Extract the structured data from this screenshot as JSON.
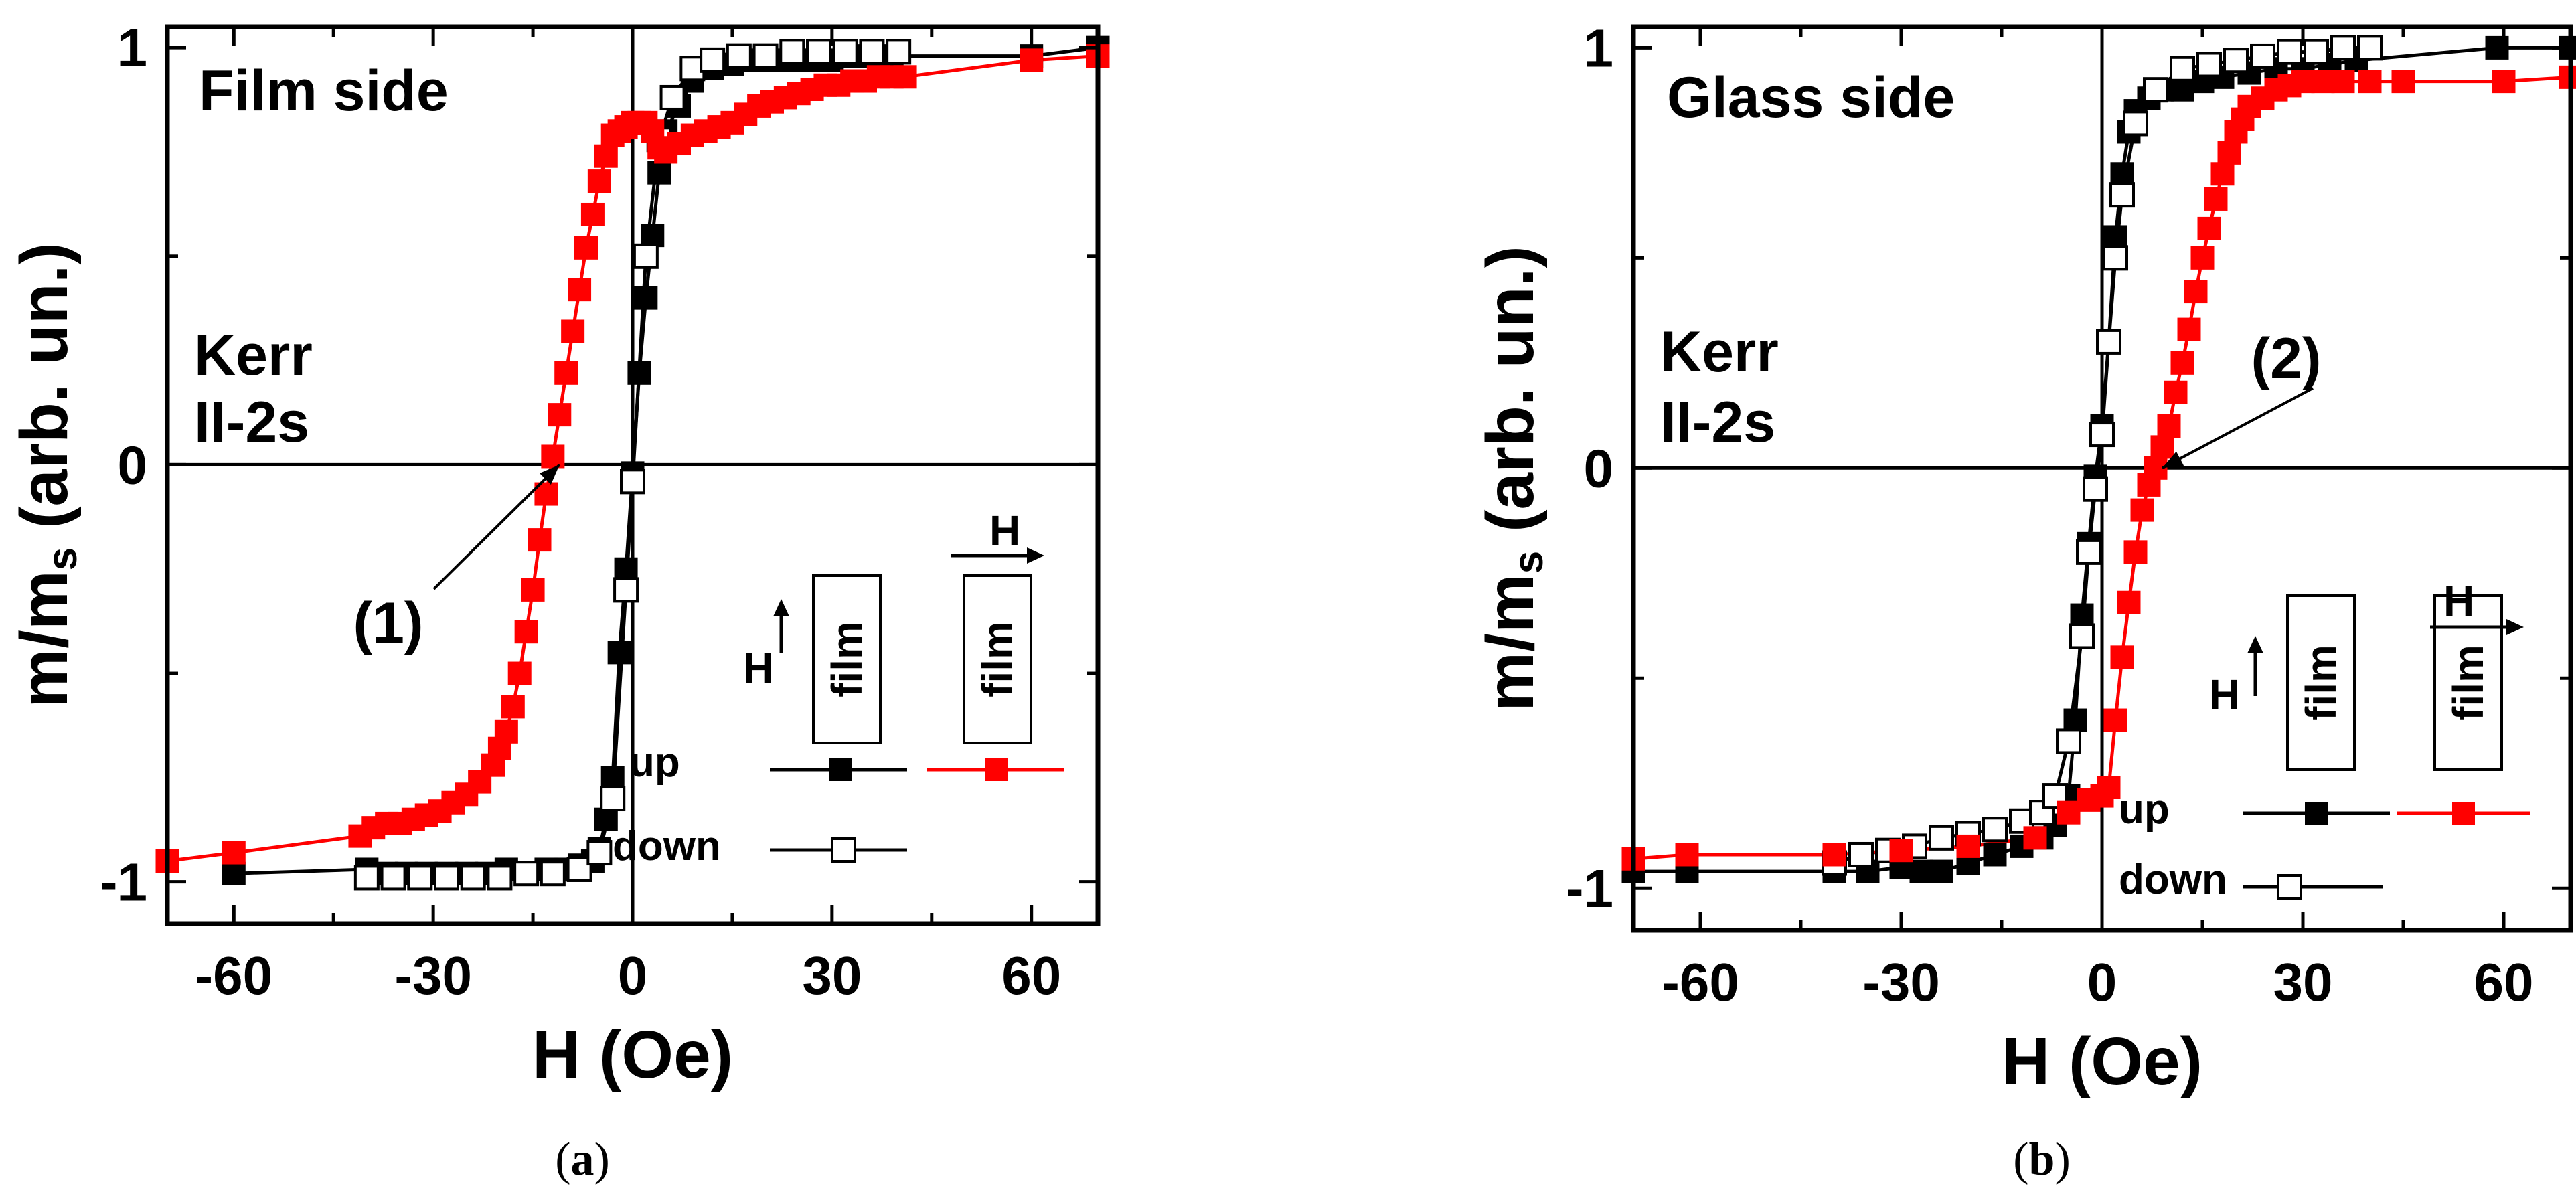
{
  "chart_data": [
    {
      "type": "scatter",
      "panel_label": {
        "open": "(",
        "letter": "a",
        "close": ")"
      },
      "title": "Film side",
      "annotation_kerr": "Kerr",
      "annotation_mode": "II-2s",
      "arrow_label": "(1)",
      "xlabel": "H (Oe)",
      "ylabel": "m/m",
      "ylabel_sub": "s",
      "ylabel_tail": " (arb. un.)",
      "xlim": [
        -70,
        70
      ],
      "ylim": [
        -1.1,
        1.05
      ],
      "xticks": [
        -60,
        -30,
        0,
        30,
        60
      ],
      "xtick_labels": [
        "-60",
        "-30",
        "0",
        "30",
        "60"
      ],
      "yticks": [
        -1,
        0,
        1
      ],
      "ytick_labels": [
        "-1",
        "0",
        "1"
      ],
      "inset_labels": {
        "h_perp": "H",
        "film_perp": "film",
        "h_par": "H",
        "film_par": "film"
      },
      "legend": {
        "up": "up",
        "down": "down"
      },
      "arrow_target": [
        -11,
        0
      ],
      "series": [
        {
          "name": "up (perpendicular)",
          "color": "#000000",
          "marker": "filled-square",
          "x": [
            -60,
            -40,
            -37,
            -34,
            -31,
            -28,
            -25,
            -22,
            -19,
            -16,
            -13,
            -10,
            -8,
            -6,
            -5,
            -4,
            -3,
            -2,
            -1,
            0,
            1,
            2,
            3,
            4,
            5,
            7,
            9,
            12,
            15,
            18,
            21,
            24,
            27,
            30,
            33,
            36,
            39,
            60,
            70
          ],
          "y": [
            -0.98,
            -0.97,
            -0.98,
            -0.98,
            -0.98,
            -0.98,
            -0.98,
            -0.98,
            -0.97,
            -0.98,
            -0.97,
            -0.97,
            -0.96,
            -0.95,
            -0.92,
            -0.85,
            -0.75,
            -0.45,
            -0.25,
            -0.02,
            0.22,
            0.4,
            0.55,
            0.7,
            0.8,
            0.86,
            0.92,
            0.95,
            0.96,
            0.97,
            0.97,
            0.97,
            0.97,
            0.97,
            0.98,
            0.98,
            0.98,
            0.98,
            1.0
          ]
        },
        {
          "name": "down (perpendicular)",
          "color": "#000000",
          "marker": "open-square",
          "x": [
            -40,
            -36,
            -32,
            -28,
            -24,
            -20,
            -16,
            -12,
            -8,
            -5,
            -3,
            -1,
            0,
            2,
            4,
            6,
            9,
            12,
            16,
            20,
            24,
            28,
            32,
            36,
            40
          ],
          "y": [
            -0.99,
            -0.99,
            -0.99,
            -0.99,
            -0.99,
            -0.99,
            -0.98,
            -0.98,
            -0.97,
            -0.93,
            -0.8,
            -0.3,
            -0.04,
            0.5,
            0.78,
            0.88,
            0.95,
            0.97,
            0.98,
            0.98,
            0.99,
            0.99,
            0.99,
            0.99,
            0.99
          ]
        },
        {
          "name": "up (parallel)",
          "color": "#ff0000",
          "marker": "filled-square",
          "x": [
            -70,
            -60,
            -41,
            -39,
            -37,
            -35,
            -33,
            -31,
            -29,
            -27,
            -25,
            -23,
            -21,
            -20,
            -19,
            -18,
            -17,
            -16,
            -15,
            -14,
            -13,
            -12,
            -11,
            -10,
            -9,
            -8,
            -7,
            -6,
            -5,
            -4,
            -3,
            -2,
            -1,
            0,
            1,
            2,
            3,
            4,
            5,
            7,
            9,
            11,
            13,
            15,
            17,
            19,
            21,
            23,
            25,
            27,
            29,
            31,
            33,
            35,
            37,
            39,
            41,
            60,
            70
          ],
          "y": [
            -0.95,
            -0.93,
            -0.89,
            -0.87,
            -0.86,
            -0.86,
            -0.85,
            -0.84,
            -0.83,
            -0.81,
            -0.79,
            -0.76,
            -0.72,
            -0.68,
            -0.64,
            -0.58,
            -0.5,
            -0.4,
            -0.3,
            -0.18,
            -0.07,
            0.02,
            0.12,
            0.22,
            0.32,
            0.42,
            0.52,
            0.6,
            0.68,
            0.74,
            0.79,
            0.8,
            0.81,
            0.82,
            0.82,
            0.82,
            0.8,
            0.76,
            0.75,
            0.77,
            0.79,
            0.8,
            0.81,
            0.82,
            0.84,
            0.86,
            0.87,
            0.88,
            0.89,
            0.9,
            0.91,
            0.91,
            0.92,
            0.92,
            0.93,
            0.93,
            0.93,
            0.97,
            0.98
          ]
        }
      ]
    },
    {
      "type": "scatter",
      "panel_label": {
        "open": "(",
        "letter": "b",
        "close": ")"
      },
      "title": "Glass side",
      "annotation_kerr": "Kerr",
      "annotation_mode": "II-2s",
      "arrow_label": "(2)",
      "xlabel": "H (Oe)",
      "ylabel": "m/m",
      "ylabel_sub": "s",
      "ylabel_tail": " (arb. un.)",
      "xlim": [
        -70,
        70
      ],
      "ylim": [
        -1.1,
        1.05
      ],
      "xticks": [
        -60,
        -30,
        0,
        30,
        60
      ],
      "xtick_labels": [
        "-60",
        "-30",
        "0",
        "30",
        "60"
      ],
      "yticks": [
        -1,
        0,
        1
      ],
      "ytick_labels": [
        "-1",
        "0",
        "1"
      ],
      "inset_labels": {
        "h_perp": "H",
        "film_perp": "film",
        "h_par": "H",
        "film_par": "film"
      },
      "legend": {
        "up": "up",
        "down": "down"
      },
      "arrow_target": [
        9,
        0
      ],
      "series": [
        {
          "name": "up (perpendicular)",
          "color": "#000000",
          "marker": "filled-square",
          "x": [
            -70,
            -62,
            -40,
            -35,
            -30,
            -27,
            -24,
            -20,
            -16,
            -12,
            -9,
            -7,
            -5,
            -4,
            -3,
            -2,
            -1,
            0,
            1,
            2,
            3,
            4,
            5,
            7,
            9,
            12,
            15,
            18,
            22,
            26,
            30,
            34,
            38,
            59,
            70
          ],
          "y": [
            -0.96,
            -0.96,
            -0.96,
            -0.96,
            -0.95,
            -0.96,
            -0.96,
            -0.94,
            -0.92,
            -0.9,
            -0.88,
            -0.85,
            -0.78,
            -0.6,
            -0.35,
            -0.18,
            -0.02,
            0.1,
            0.3,
            0.55,
            0.7,
            0.8,
            0.85,
            0.88,
            0.9,
            0.9,
            0.92,
            0.93,
            0.94,
            0.95,
            0.95,
            0.96,
            0.97,
            1.0,
            1.0
          ]
        },
        {
          "name": "down (perpendicular)",
          "color": "#000000",
          "marker": "open-square",
          "x": [
            -40,
            -36,
            -32,
            -28,
            -24,
            -20,
            -16,
            -12,
            -9,
            -7,
            -5,
            -3,
            -2,
            -1,
            0,
            1,
            2,
            3,
            5,
            8,
            12,
            16,
            20,
            24,
            28,
            32,
            36,
            40
          ],
          "y": [
            -0.94,
            -0.92,
            -0.91,
            -0.9,
            -0.88,
            -0.87,
            -0.86,
            -0.84,
            -0.82,
            -0.78,
            -0.65,
            -0.4,
            -0.2,
            -0.05,
            0.08,
            0.3,
            0.5,
            0.65,
            0.82,
            0.9,
            0.95,
            0.96,
            0.97,
            0.98,
            0.99,
            0.99,
            1.0,
            1.0
          ]
        },
        {
          "name": "up (parallel)",
          "color": "#ff0000",
          "marker": "filled-square",
          "x": [
            -70,
            -62,
            -40,
            -30,
            -20,
            -10,
            -5,
            -2,
            0,
            1,
            2,
            3,
            4,
            5,
            6,
            7,
            8,
            9,
            10,
            11,
            12,
            13,
            14,
            15,
            16,
            17,
            18,
            19,
            20,
            21,
            22,
            24,
            26,
            28,
            30,
            33,
            36,
            40,
            45,
            60,
            70
          ],
          "y": [
            -0.93,
            -0.92,
            -0.92,
            -0.91,
            -0.9,
            -0.88,
            -0.82,
            -0.79,
            -0.78,
            -0.76,
            -0.6,
            -0.45,
            -0.32,
            -0.2,
            -0.1,
            -0.04,
            0.0,
            0.05,
            0.1,
            0.18,
            0.25,
            0.33,
            0.42,
            0.5,
            0.57,
            0.64,
            0.7,
            0.75,
            0.8,
            0.83,
            0.86,
            0.88,
            0.9,
            0.91,
            0.92,
            0.92,
            0.92,
            0.92,
            0.92,
            0.92,
            0.93
          ]
        }
      ]
    }
  ]
}
